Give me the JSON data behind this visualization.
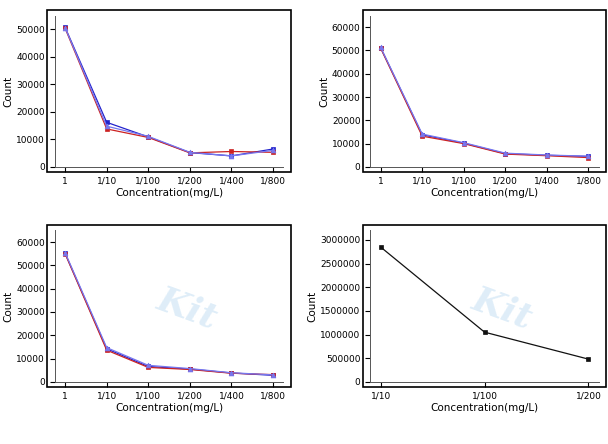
{
  "subplot1": {
    "x_labels": [
      "1",
      "1/10",
      "1/100",
      "1/200",
      "1/400",
      "1/800"
    ],
    "series": [
      {
        "color": "#2222cc",
        "marker": "s",
        "values": [
          50700,
          16200,
          10900,
          5200,
          4000,
          6500
        ]
      },
      {
        "color": "#cc2222",
        "marker": "s",
        "values": [
          50400,
          13800,
          10700,
          5100,
          5600,
          5300
        ]
      },
      {
        "color": "#7777ee",
        "marker": "^",
        "values": [
          50600,
          14800,
          11100,
          5300,
          4000,
          6000
        ]
      }
    ],
    "ylim": [
      0,
      55000
    ],
    "yticks": [
      0,
      10000,
      20000,
      30000,
      40000,
      50000
    ],
    "ylabel": "Count",
    "xlabel": "Concentration(mg/L)"
  },
  "subplot2": {
    "x_labels": [
      "1",
      "1/10",
      "1/100",
      "1/200",
      "1/400",
      "1/800"
    ],
    "series": [
      {
        "color": "#2222cc",
        "marker": "s",
        "values": [
          51200,
          13800,
          10200,
          5700,
          5000,
          4500
        ]
      },
      {
        "color": "#cc2222",
        "marker": "s",
        "values": [
          51000,
          13200,
          10000,
          5500,
          4800,
          4000
        ]
      },
      {
        "color": "#7777ee",
        "marker": "^",
        "values": [
          51400,
          14100,
          10400,
          5900,
          5100,
          4600
        ]
      }
    ],
    "ylim": [
      0,
      65000
    ],
    "yticks": [
      0,
      10000,
      20000,
      30000,
      40000,
      50000,
      60000
    ],
    "ylabel": "Count",
    "xlabel": "Concentration(mg/L)"
  },
  "subplot3": {
    "x_labels": [
      "1",
      "1/10",
      "1/100",
      "1/200",
      "1/400",
      "1/800"
    ],
    "series": [
      {
        "color": "#2222cc",
        "marker": "s",
        "values": [
          55200,
          14200,
          6600,
          5500,
          3800,
          2800
        ]
      },
      {
        "color": "#cc2222",
        "marker": "s",
        "values": [
          55000,
          13600,
          6200,
          5300,
          3700,
          3100
        ]
      },
      {
        "color": "#7777ee",
        "marker": "^",
        "values": [
          55500,
          14700,
          7100,
          5700,
          3900,
          3000
        ]
      }
    ],
    "ylim": [
      0,
      65000
    ],
    "yticks": [
      0,
      10000,
      20000,
      30000,
      40000,
      50000,
      60000
    ],
    "ylabel": "Count",
    "xlabel": "Concentration(mg/L)"
  },
  "subplot4": {
    "x_labels": [
      "1/10",
      "1/100",
      "1/200"
    ],
    "series": [
      {
        "color": "#111111",
        "marker": "s",
        "values": [
          2850000,
          1050000,
          480000
        ]
      }
    ],
    "ylim": [
      0,
      3200000
    ],
    "yticks": [
      0,
      500000,
      1000000,
      1500000,
      2000000,
      2500000,
      3000000
    ],
    "ylabel": "Count",
    "xlabel": "Concentration(mg/L)"
  },
  "watermark_color": "#b8d8f0",
  "watermark_alpha": 0.45,
  "background_color": "#ffffff"
}
